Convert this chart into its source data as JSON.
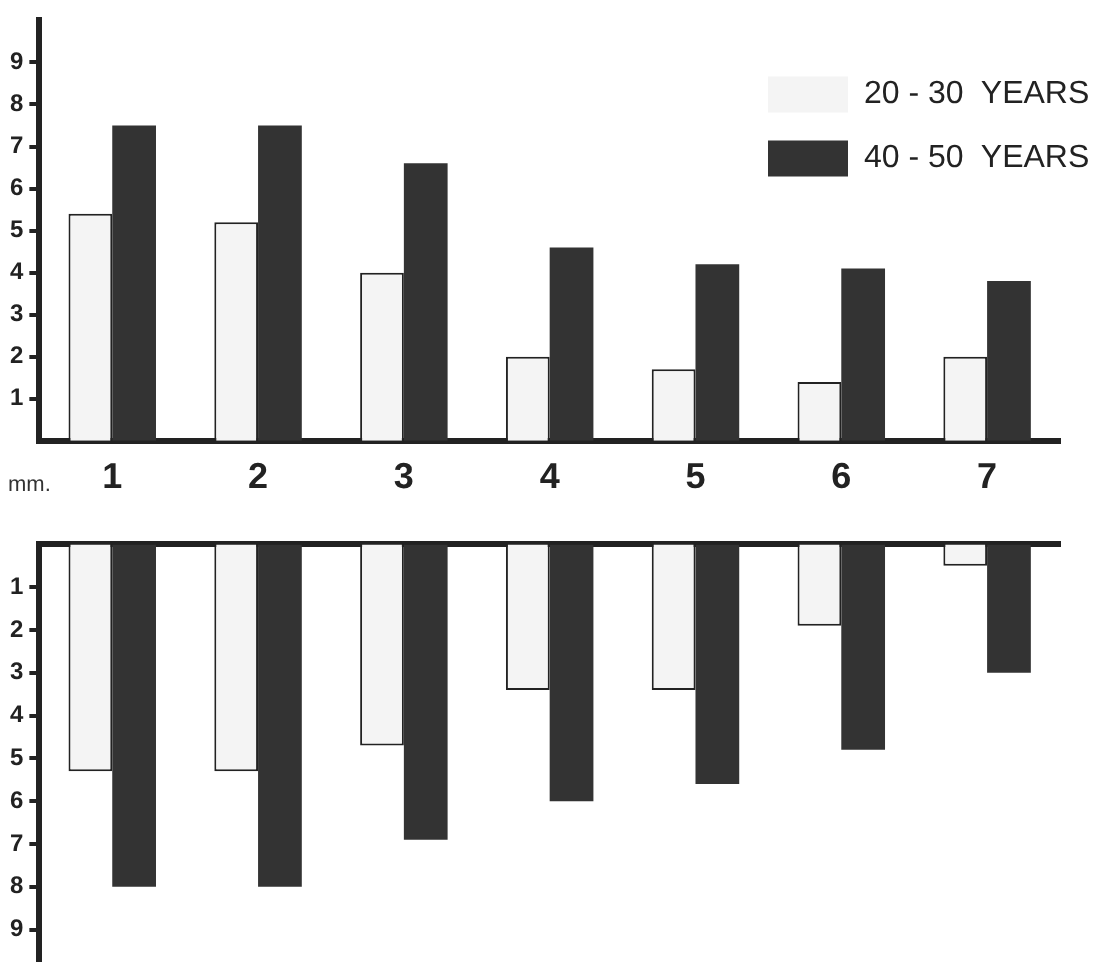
{
  "chart_data": [
    {
      "type": "bar",
      "categories": [
        "1",
        "2",
        "3",
        "4",
        "5",
        "6",
        "7"
      ],
      "series": [
        {
          "name": "20 - 30  YEARS",
          "color": "#f4f4f4",
          "values": [
            5.4,
            5.2,
            4.0,
            2.0,
            1.7,
            1.4,
            2.0
          ]
        },
        {
          "name": "40 - 50  YEARS",
          "color": "#333333",
          "values": [
            7.5,
            7.5,
            6.6,
            4.6,
            4.2,
            4.1,
            3.8
          ]
        }
      ],
      "ylim": [
        0,
        10
      ],
      "yticks": [
        1,
        2,
        3,
        4,
        5,
        6,
        7,
        8,
        9
      ],
      "grid": false,
      "legend": "top right",
      "annotations": [
        "mm."
      ]
    },
    {
      "type": "bar",
      "categories": [
        "1",
        "2",
        "3",
        "4",
        "5",
        "6",
        "7"
      ],
      "series": [
        {
          "color": "#f4f4f4",
          "values": [
            5.3,
            5.3,
            4.7,
            3.4,
            3.4,
            1.9,
            0.5
          ]
        },
        {
          "color": "#333333",
          "values": [
            8.0,
            8.0,
            6.9,
            6.0,
            5.6,
            4.8,
            3.0
          ]
        }
      ],
      "ylim": [
        9.7,
        0
      ],
      "yticks": [
        1,
        2,
        3,
        4,
        5,
        6,
        7,
        8,
        9
      ],
      "grid": false,
      "legend": false,
      "tick_labels": "y"
    }
  ]
}
